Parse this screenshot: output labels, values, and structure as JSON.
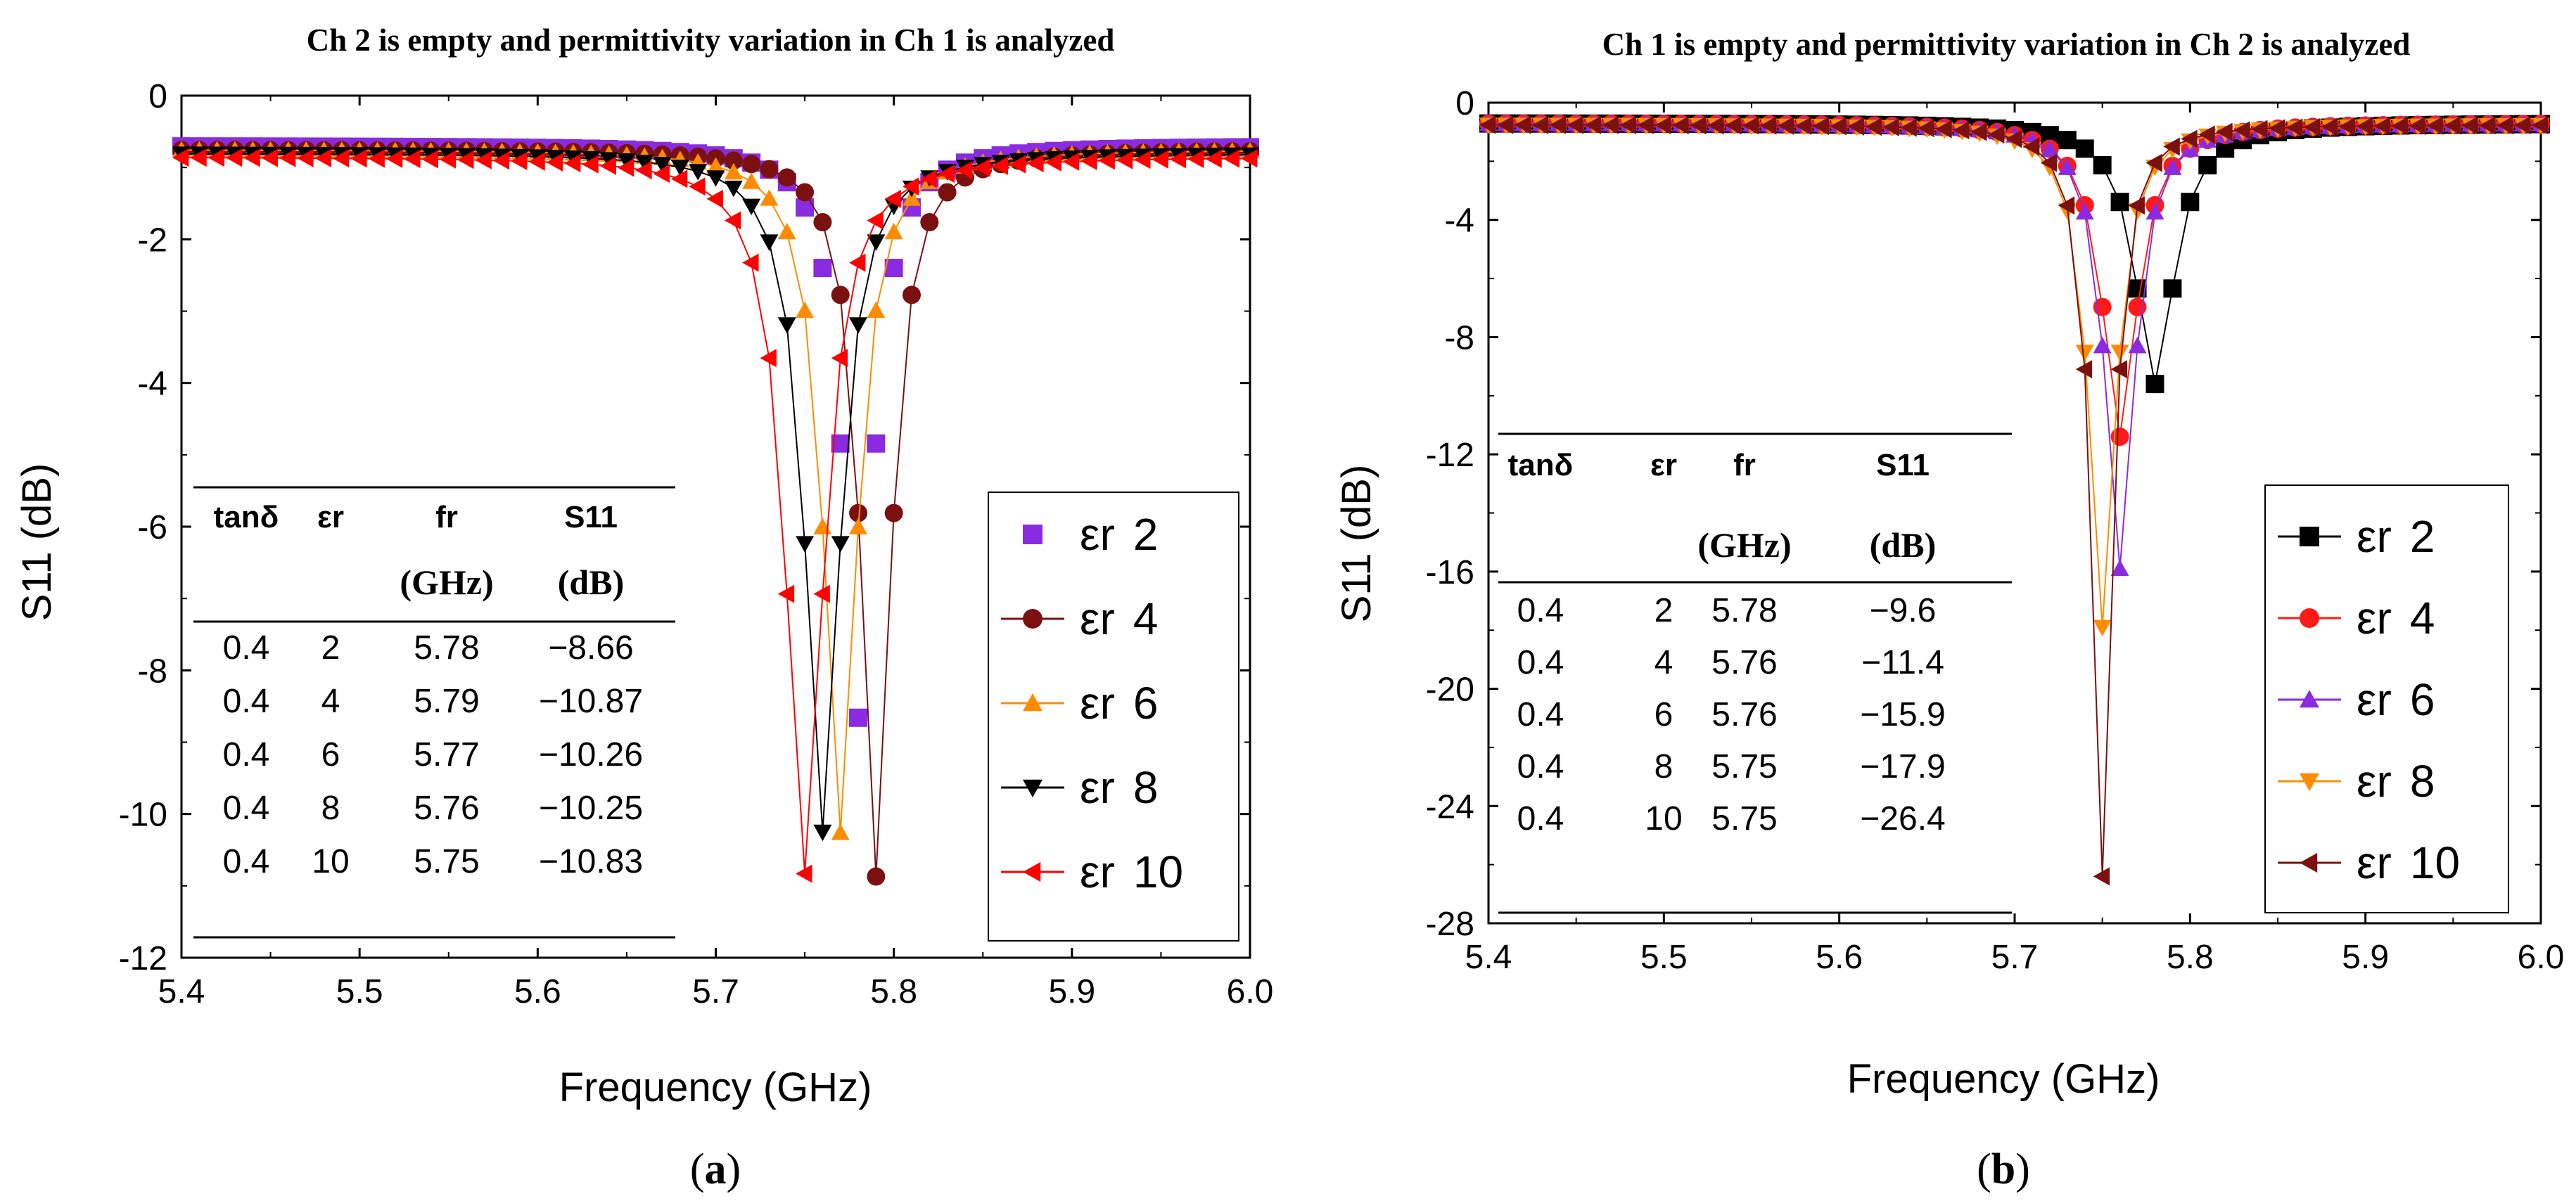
{
  "chart_data": [
    {
      "panel": "a",
      "caption_letter": "a",
      "type": "line",
      "title": "Ch 2 is empty and permittivity variation in Ch 1 is analyzed",
      "xlabel": "Frequency (GHz)",
      "ylabel": "S11 (dB)",
      "xlim": [
        5.4,
        6.0
      ],
      "ylim": [
        -12,
        0
      ],
      "xticks": [
        "5.4",
        "5.5",
        "5.6",
        "5.7",
        "5.8",
        "5.9",
        "6.0"
      ],
      "yticks": [
        "0",
        "-2",
        "-4",
        "-6",
        "-8",
        "-10",
        "-12"
      ],
      "grid": false,
      "legend_position": "right",
      "series": [
        {
          "name": "εr 2",
          "legend_symbol": "εr",
          "legend_value": "2",
          "color": "#8a2be2",
          "marker": "square",
          "connected": false,
          "fr": 5.78,
          "min": -8.66,
          "q": 48,
          "base": -0.7
        },
        {
          "name": "εr 4",
          "legend_symbol": "εr",
          "legend_value": "4",
          "color": "#7b1010",
          "marker": "circle",
          "connected": true,
          "fr": 5.79,
          "min": -10.87,
          "q": 50,
          "base": -0.75
        },
        {
          "name": "εr 6",
          "legend_symbol": "εr",
          "legend_value": "6",
          "color": "#ff8c00",
          "marker": "triangle-up",
          "connected": true,
          "fr": 5.77,
          "min": -10.26,
          "q": 45,
          "base": -0.75
        },
        {
          "name": "εr 8",
          "legend_symbol": "εr",
          "legend_value": "8",
          "color": "#000000",
          "marker": "triangle-down",
          "connected": true,
          "fr": 5.76,
          "min": -10.25,
          "q": 43,
          "base": -0.8
        },
        {
          "name": "εr 10",
          "legend_symbol": "εr",
          "legend_value": "10",
          "color": "#ff0000",
          "marker": "triangle-left",
          "connected": true,
          "fr": 5.75,
          "min": -10.83,
          "q": 40,
          "base": -0.85
        }
      ],
      "table": {
        "header": [
          "tanδ",
          "εr",
          "fr",
          "S11"
        ],
        "units": [
          "",
          "",
          "(GHz)",
          "(dB)"
        ],
        "rows": [
          [
            "0.4",
            "2",
            "5.78",
            "−8.66"
          ],
          [
            "0.4",
            "4",
            "5.79",
            "−10.87"
          ],
          [
            "0.4",
            "6",
            "5.77",
            "−10.26"
          ],
          [
            "0.4",
            "8",
            "5.76",
            "−10.25"
          ],
          [
            "0.4",
            "10",
            "5.75",
            "−10.83"
          ]
        ]
      }
    },
    {
      "panel": "b",
      "caption_letter": "b",
      "type": "line",
      "title": "Ch 1 is empty and permittivity variation in Ch 2 is analyzed",
      "xlabel": "Frequency (GHz)",
      "ylabel": "S11 (dB)",
      "xlim": [
        5.4,
        6.0
      ],
      "ylim": [
        -28,
        0
      ],
      "xticks": [
        "5.4",
        "5.5",
        "5.6",
        "5.7",
        "5.8",
        "5.9",
        "6.0"
      ],
      "yticks": [
        "0",
        "-4",
        "-8",
        "-12",
        "-16",
        "-20",
        "-24",
        "-28"
      ],
      "grid": false,
      "legend_position": "right",
      "series": [
        {
          "name": "εr 2",
          "legend_symbol": "εr",
          "legend_value": "2",
          "color": "#000000",
          "marker": "square",
          "connected": true,
          "fr": 5.78,
          "min": -9.6,
          "q": 38,
          "base": -0.7
        },
        {
          "name": "εr 4",
          "legend_symbol": "εr",
          "legend_value": "4",
          "color": "#ff1a1a",
          "marker": "circle",
          "connected": true,
          "fr": 5.76,
          "min": -11.4,
          "q": 42,
          "base": -0.7
        },
        {
          "name": "εr 6",
          "legend_symbol": "εr",
          "legend_value": "6",
          "color": "#8a2be2",
          "marker": "triangle-up",
          "connected": true,
          "fr": 5.76,
          "min": -15.9,
          "q": 50,
          "base": -0.7
        },
        {
          "name": "εr 8",
          "legend_symbol": "εr",
          "legend_value": "8",
          "color": "#ff8c00",
          "marker": "triangle-down",
          "connected": true,
          "fr": 5.75,
          "min": -17.9,
          "q": 55,
          "base": -0.75
        },
        {
          "name": "εr 10",
          "legend_symbol": "εr",
          "legend_value": "10",
          "color": "#7b1010",
          "marker": "triangle-left",
          "connected": true,
          "fr": 5.75,
          "min": -26.4,
          "q": 72,
          "base": -0.75
        }
      ],
      "table": {
        "header": [
          "tanδ",
          "εr",
          "fr",
          "S11"
        ],
        "units": [
          "",
          "",
          "(GHz)",
          "(dB)"
        ],
        "rows": [
          [
            "0.4",
            "2",
            "5.78",
            "−9.6"
          ],
          [
            "0.4",
            "4",
            "5.76",
            "−11.4"
          ],
          [
            "0.4",
            "6",
            "5.76",
            "−15.9"
          ],
          [
            "0.4",
            "8",
            "5.75",
            "−17.9"
          ],
          [
            "0.4",
            "10",
            "5.75",
            "−26.4"
          ]
        ]
      }
    }
  ]
}
